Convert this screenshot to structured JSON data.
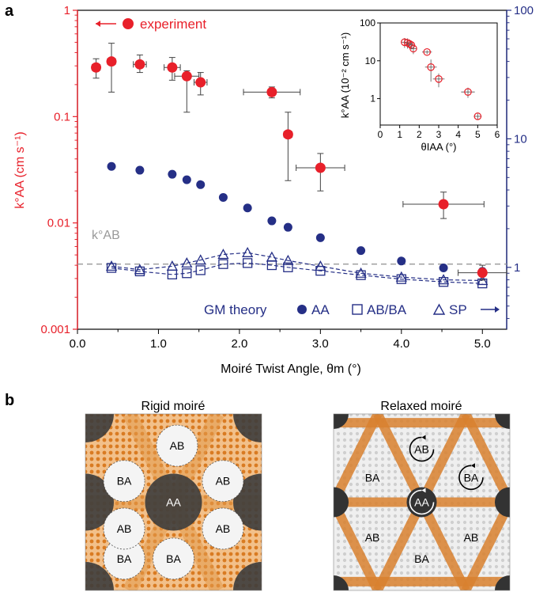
{
  "panel_a_label": "a",
  "panel_b_label": "b",
  "colors": {
    "red": "#e8202a",
    "blue": "#252f86",
    "gray": "#999999",
    "orange": "#e8923a"
  },
  "chart_data": [
    {
      "type": "scatter",
      "title": "",
      "xlabel": "Moiré Twist Angle, θm (°)",
      "ylabel_left": "k°AA (cm s⁻¹)",
      "xlim": [
        0,
        5.3
      ],
      "ylim_left": [
        0.001,
        1
      ],
      "ylim_right": [
        0.33,
        100
      ],
      "y_scale": "log",
      "x_ticks": [
        "0.0",
        "1.0",
        "2.0",
        "3.0",
        "4.0",
        "5.0"
      ],
      "y_left_ticks": [
        "0.001",
        "0.01",
        "0.1",
        "1"
      ],
      "y_right_ticks": [
        "1",
        "10",
        "100"
      ],
      "reference_label": "k°AB",
      "reference_value": 0.0041,
      "legend_experiment": "experiment",
      "legend_theory_title": "GM theory",
      "legend_theory_items": [
        "AA",
        "AB/BA",
        "SP"
      ],
      "series": [
        {
          "name": "experiment",
          "x": [
            0.23,
            0.42,
            0.77,
            1.17,
            1.35,
            1.52,
            2.4,
            2.6,
            3.0,
            4.52,
            5.0
          ],
          "y": [
            0.29,
            0.33,
            0.31,
            0.29,
            0.24,
            0.21,
            0.17,
            0.068,
            0.033,
            0.015,
            0.0034
          ],
          "x_err": [
            0.05,
            0.05,
            0.08,
            0.1,
            0.15,
            0.08,
            0.35,
            0.05,
            0.3,
            0.5,
            0.3
          ],
          "y_err_low": [
            0.06,
            0.16,
            0.05,
            0.07,
            0.13,
            0.05,
            0.02,
            0.043,
            0.013,
            0.004,
            0.0005
          ],
          "y_err_high": [
            0.06,
            0.16,
            0.07,
            0.07,
            0.03,
            0.05,
            0.02,
            0.042,
            0.012,
            0.0045,
            0.0006
          ]
        },
        {
          "name": "AA",
          "x": [
            0.42,
            0.77,
            1.17,
            1.35,
            1.52,
            1.8,
            2.1,
            2.4,
            2.6,
            3.0,
            3.5,
            4.0,
            4.52,
            5.0
          ],
          "y_right": [
            6.1,
            5.7,
            5.3,
            4.8,
            4.4,
            3.5,
            2.9,
            2.3,
            2.05,
            1.7,
            1.35,
            1.12,
            0.99,
            0.93
          ]
        },
        {
          "name": "AB/BA",
          "x": [
            0.42,
            0.77,
            1.17,
            1.35,
            1.52,
            1.8,
            2.1,
            2.4,
            2.6,
            3.0,
            3.5,
            4.0,
            4.52,
            5.0
          ],
          "y_right": [
            0.99,
            0.93,
            0.88,
            0.9,
            0.95,
            1.06,
            1.08,
            1.04,
            1.0,
            0.94,
            0.87,
            0.81,
            0.77,
            0.75
          ]
        },
        {
          "name": "SP",
          "x": [
            0.42,
            0.77,
            1.17,
            1.35,
            1.52,
            1.8,
            2.1,
            2.4,
            2.6,
            3.0,
            3.5,
            4.0,
            4.52,
            5.0
          ],
          "y_right": [
            1.02,
            0.96,
            1.02,
            1.08,
            1.14,
            1.26,
            1.3,
            1.2,
            1.13,
            1.02,
            0.9,
            0.84,
            0.8,
            0.79
          ]
        }
      ]
    },
    {
      "type": "scatter",
      "title": "inset",
      "xlabel": "θIAA (°)",
      "ylabel": "k°AA (10⁻² cm s⁻¹)",
      "xlim": [
        0,
        6
      ],
      "ylim": [
        0.2,
        100
      ],
      "y_scale": "log",
      "x_ticks": [
        "0",
        "1",
        "2",
        "3",
        "4",
        "5",
        "6"
      ],
      "y_ticks": [
        "1",
        "10",
        "100"
      ],
      "series": [
        {
          "name": "inset-data",
          "x": [
            1.25,
            1.4,
            1.5,
            1.6,
            1.7,
            2.4,
            2.6,
            3.0,
            4.5,
            5.0
          ],
          "y": [
            31,
            30,
            28,
            26,
            21,
            17,
            6.8,
            3.3,
            1.5,
            0.34
          ],
          "x_err": [
            0.15,
            0.15,
            0.15,
            0.15,
            0.15,
            0.25,
            0.3,
            0.3,
            0.35,
            0.2
          ],
          "y_err": [
            9,
            9,
            7,
            6,
            6,
            2,
            4,
            1.3,
            0.45,
            0.06
          ]
        }
      ]
    }
  ],
  "panel_b": {
    "rigid_title": "Rigid moiré",
    "relaxed_title": "Relaxed moiré",
    "rigid_labels": [
      {
        "text": "AB"
      },
      {
        "text": "BA"
      },
      {
        "text": "AB"
      },
      {
        "text": "BA"
      },
      {
        "text": "AA"
      },
      {
        "text": "AB"
      },
      {
        "text": "AB"
      },
      {
        "text": "BA"
      }
    ],
    "relaxed_labels": [
      {
        "text": "AB"
      },
      {
        "text": "BA"
      },
      {
        "text": "BA"
      },
      {
        "text": "AA"
      },
      {
        "text": "AB"
      },
      {
        "text": "AB"
      },
      {
        "text": "BA"
      }
    ]
  }
}
